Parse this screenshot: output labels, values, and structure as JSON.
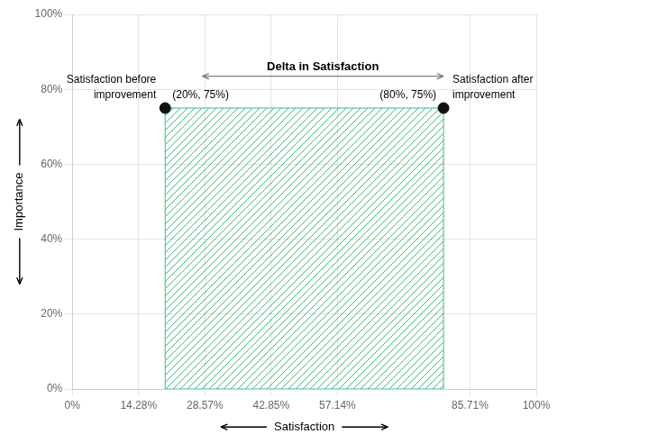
{
  "chart_data": {
    "type": "scatter",
    "xlabel": "Satisfaction",
    "ylabel": "Importance",
    "xlim": [
      0,
      1
    ],
    "ylim": [
      0,
      1
    ],
    "xticks": [
      {
        "value": 0,
        "label": "0%"
      },
      {
        "value": 0.1428,
        "label": "14.28%"
      },
      {
        "value": 0.2857,
        "label": "28.57%"
      },
      {
        "value": 0.4285,
        "label": "42.85%"
      },
      {
        "value": 0.5714,
        "label": "57.14%"
      },
      {
        "value": 0.8571,
        "label": "85.71%"
      },
      {
        "value": 1.0,
        "label": "100%"
      }
    ],
    "yticks": [
      {
        "value": 0,
        "label": "0%"
      },
      {
        "value": 0.2,
        "label": "20%"
      },
      {
        "value": 0.4,
        "label": "40%"
      },
      {
        "value": 0.6,
        "label": "60%"
      },
      {
        "value": 0.8,
        "label": "80%"
      },
      {
        "value": 1.0,
        "label": "100%"
      }
    ],
    "grid": true,
    "data_labels": true,
    "series": [
      {
        "color": "#111111",
        "x": [
          0.2,
          0.8
        ],
        "values": [
          0.75,
          0.75
        ],
        "value_labels": [
          "(20%, 75%)",
          "(80%, 75%)"
        ]
      }
    ],
    "region": {
      "x": [
        0.2,
        0.8
      ],
      "y": [
        0.0,
        0.75
      ],
      "color": "#3dbb7e"
    },
    "annotations": [
      {
        "text": "Satisfaction before\nimprovement",
        "x": 0.2,
        "y": 0.75
      },
      {
        "text": "Satisfaction after\nimprovement",
        "x": 0.8,
        "y": 0.75
      },
      {
        "text": "Delta in Satisfaction",
        "x": [
          0.28,
          0.8
        ],
        "y": 0.835,
        "arrow": "both"
      }
    ]
  }
}
